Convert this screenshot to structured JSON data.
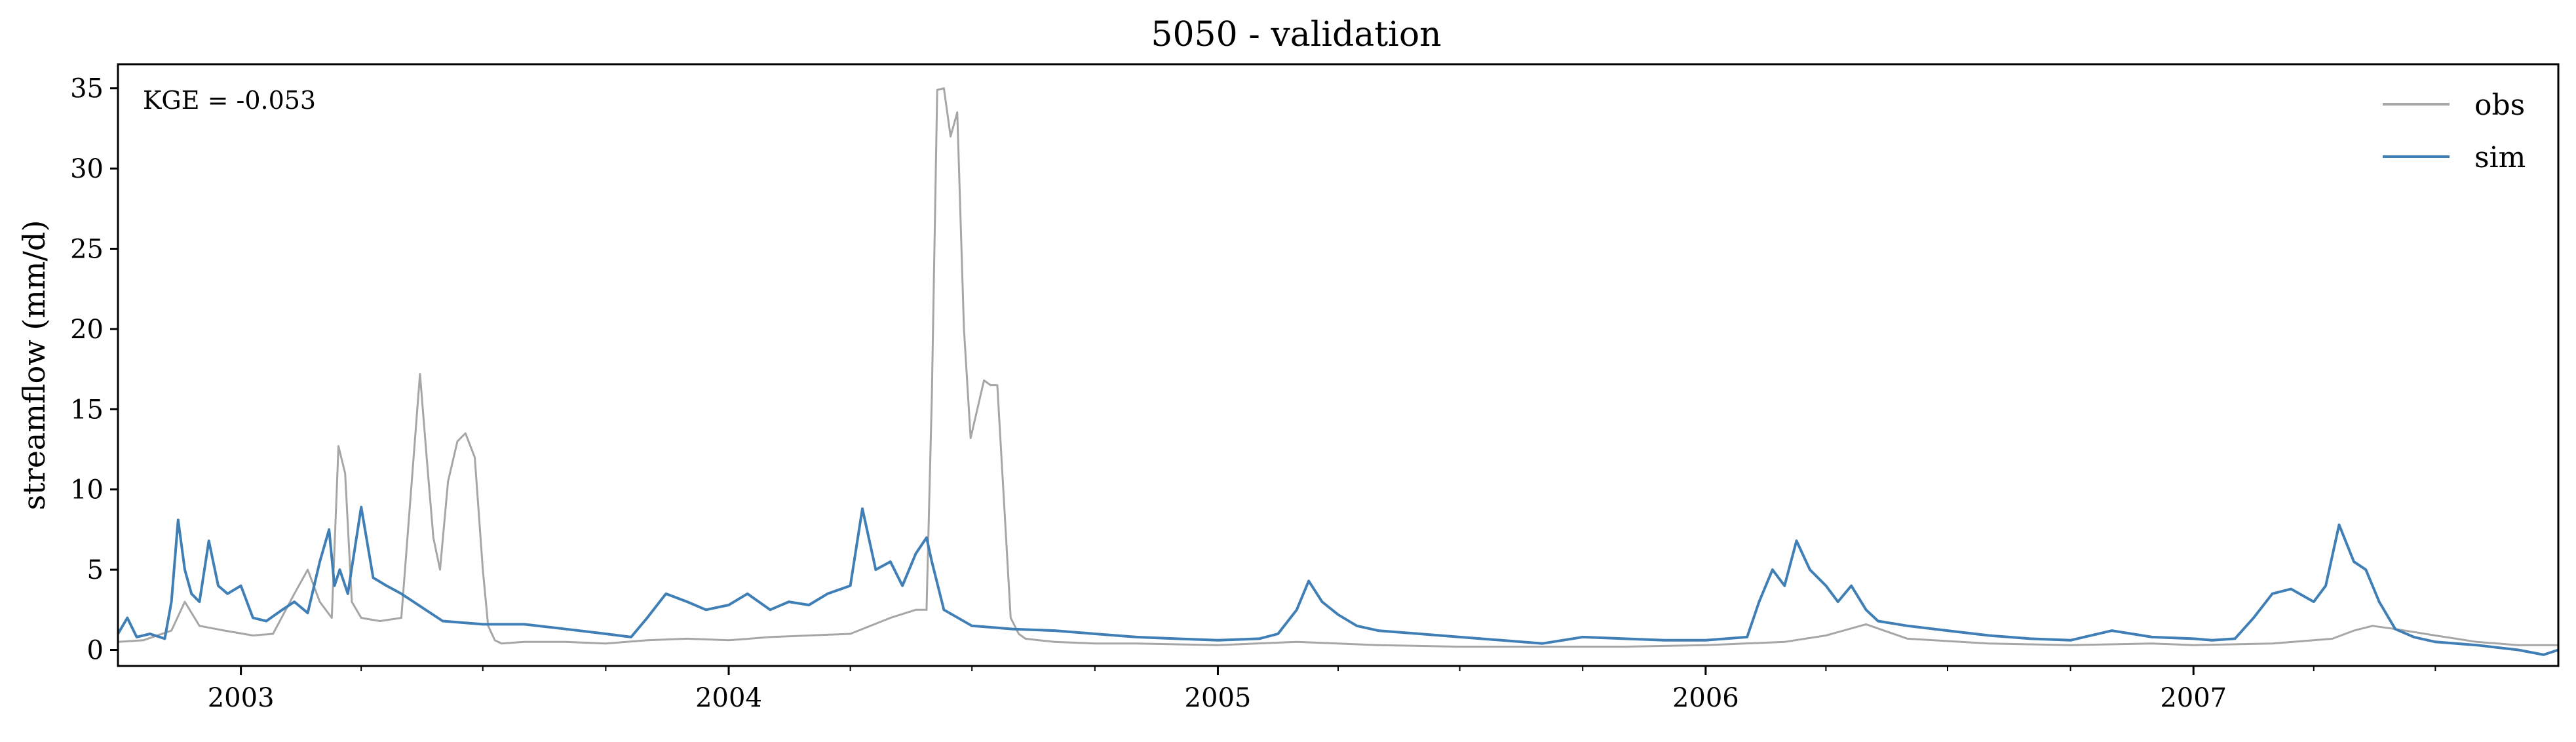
{
  "chart_data": {
    "type": "line",
    "title": "5050 - validation",
    "xlabel": "",
    "ylabel": "streamflow (mm/d)",
    "xlim": [
      "2002-10-01",
      "2007-10-01"
    ],
    "ylim": [
      -1,
      36.5
    ],
    "yticks": [
      0,
      5,
      10,
      15,
      20,
      25,
      30,
      35
    ],
    "xticks": [
      {
        "date": "2003-01-01",
        "label": "2003"
      },
      {
        "date": "2004-01-01",
        "label": "2004"
      },
      {
        "date": "2005-01-01",
        "label": "2005"
      },
      {
        "date": "2006-01-01",
        "label": "2006"
      },
      {
        "date": "2007-01-01",
        "label": "2007"
      }
    ],
    "grid": false,
    "legend_position": "top-right",
    "annotation": "KGE = -0.053",
    "series": [
      {
        "name": "obs",
        "color": "#a6a6a6",
        "x": [
          "2002-10-01",
          "2002-10-20",
          "2002-11-10",
          "2002-11-20",
          "2002-12-01",
          "2002-12-20",
          "2003-01-10",
          "2003-01-25",
          "2003-02-10",
          "2003-02-20",
          "2003-03-01",
          "2003-03-10",
          "2003-03-15",
          "2003-03-20",
          "2003-03-25",
          "2003-04-01",
          "2003-04-15",
          "2003-05-01",
          "2003-05-15",
          "2003-05-20",
          "2003-05-25",
          "2003-05-30",
          "2003-06-05",
          "2003-06-12",
          "2003-06-18",
          "2003-06-25",
          "2003-07-01",
          "2003-07-05",
          "2003-07-10",
          "2003-07-15",
          "2003-08-01",
          "2003-09-01",
          "2003-10-01",
          "2003-11-01",
          "2003-12-01",
          "2004-01-01",
          "2004-02-01",
          "2004-03-01",
          "2004-04-01",
          "2004-05-01",
          "2004-05-20",
          "2004-05-28",
          "2004-06-01",
          "2004-06-05",
          "2004-06-10",
          "2004-06-15",
          "2004-06-20",
          "2004-06-25",
          "2004-06-30",
          "2004-07-05",
          "2004-07-10",
          "2004-07-15",
          "2004-07-20",
          "2004-07-30",
          "2004-08-05",
          "2004-08-10",
          "2004-08-20",
          "2004-09-01",
          "2004-10-01",
          "2004-11-01",
          "2005-01-01",
          "2005-03-01",
          "2005-05-01",
          "2005-07-01",
          "2005-09-01",
          "2005-11-01",
          "2006-01-01",
          "2006-03-01",
          "2006-04-01",
          "2006-05-01",
          "2006-06-01",
          "2006-08-01",
          "2006-10-01",
          "2006-12-01",
          "2007-01-01",
          "2007-03-01",
          "2007-04-15",
          "2007-05-01",
          "2007-05-15",
          "2007-06-01",
          "2007-07-01",
          "2007-08-01",
          "2007-09-01",
          "2007-10-01"
        ],
        "y": [
          0.5,
          0.6,
          1.2,
          3.0,
          1.5,
          1.2,
          0.9,
          1.0,
          3.5,
          5.0,
          3.0,
          2.0,
          12.7,
          11.0,
          3.0,
          2.0,
          1.8,
          2.0,
          17.2,
          12.0,
          7.0,
          5.0,
          10.5,
          13.0,
          13.5,
          12.0,
          5.0,
          1.5,
          0.6,
          0.4,
          0.5,
          0.5,
          0.4,
          0.6,
          0.7,
          0.6,
          0.8,
          0.9,
          1.0,
          2.0,
          2.5,
          2.5,
          15.8,
          34.9,
          35.0,
          32.0,
          33.5,
          20.0,
          13.2,
          15.0,
          16.8,
          16.5,
          16.5,
          2.0,
          1.0,
          0.7,
          0.6,
          0.5,
          0.4,
          0.4,
          0.3,
          0.5,
          0.3,
          0.2,
          0.2,
          0.2,
          0.3,
          0.5,
          0.9,
          1.6,
          0.7,
          0.4,
          0.3,
          0.4,
          0.3,
          0.4,
          0.7,
          1.2,
          1.5,
          1.3,
          0.9,
          0.5,
          0.3,
          0.3
        ]
      },
      {
        "name": "sim",
        "color": "#3f7fb5",
        "x": [
          "2002-10-01",
          "2002-10-08",
          "2002-10-15",
          "2002-10-25",
          "2002-11-05",
          "2002-11-10",
          "2002-11-15",
          "2002-11-20",
          "2002-11-25",
          "2002-12-01",
          "2002-12-08",
          "2002-12-15",
          "2002-12-22",
          "2003-01-01",
          "2003-01-10",
          "2003-01-20",
          "2003-02-01",
          "2003-02-10",
          "2003-02-20",
          "2003-03-01",
          "2003-03-08",
          "2003-03-12",
          "2003-03-16",
          "2003-03-22",
          "2003-04-01",
          "2003-04-10",
          "2003-04-20",
          "2003-05-01",
          "2003-06-01",
          "2003-07-01",
          "2003-08-01",
          "2003-09-01",
          "2003-10-01",
          "2003-10-20",
          "2003-11-01",
          "2003-11-15",
          "2003-12-01",
          "2003-12-15",
          "2004-01-01",
          "2004-01-15",
          "2004-02-01",
          "2004-02-15",
          "2004-03-01",
          "2004-03-15",
          "2004-04-01",
          "2004-04-10",
          "2004-04-20",
          "2004-05-01",
          "2004-05-10",
          "2004-05-20",
          "2004-05-28",
          "2004-06-01",
          "2004-06-10",
          "2004-07-01",
          "2004-08-01",
          "2004-09-01",
          "2004-10-01",
          "2004-11-01",
          "2004-12-01",
          "2005-01-01",
          "2005-02-01",
          "2005-02-15",
          "2005-03-01",
          "2005-03-10",
          "2005-03-20",
          "2005-04-01",
          "2005-04-15",
          "2005-05-01",
          "2005-06-01",
          "2005-07-01",
          "2005-08-01",
          "2005-09-01",
          "2005-10-01",
          "2005-11-01",
          "2005-12-01",
          "2006-01-01",
          "2006-02-01",
          "2006-02-10",
          "2006-02-20",
          "2006-03-01",
          "2006-03-10",
          "2006-03-20",
          "2006-04-01",
          "2006-04-10",
          "2006-04-20",
          "2006-05-01",
          "2006-05-10",
          "2006-06-01",
          "2006-07-01",
          "2006-08-01",
          "2006-09-01",
          "2006-10-01",
          "2006-11-01",
          "2006-12-01",
          "2007-01-01",
          "2007-01-15",
          "2007-02-01",
          "2007-02-15",
          "2007-03-01",
          "2007-03-15",
          "2007-04-01",
          "2007-04-10",
          "2007-04-20",
          "2007-05-01",
          "2007-05-10",
          "2007-05-20",
          "2007-06-01",
          "2007-06-15",
          "2007-07-01",
          "2007-08-01",
          "2007-09-01",
          "2007-09-20",
          "2007-10-01"
        ],
        "y": [
          1.0,
          2.0,
          0.8,
          1.0,
          0.7,
          3.0,
          8.1,
          5.0,
          3.5,
          3.0,
          6.8,
          4.0,
          3.5,
          4.0,
          2.0,
          1.8,
          2.5,
          3.0,
          2.3,
          5.5,
          7.5,
          4.0,
          5.0,
          3.5,
          8.9,
          4.5,
          4.0,
          3.5,
          1.8,
          1.6,
          1.6,
          1.3,
          1.0,
          0.8,
          2.0,
          3.5,
          3.0,
          2.5,
          2.8,
          3.5,
          2.5,
          3.0,
          2.8,
          3.5,
          4.0,
          8.8,
          5.0,
          5.5,
          4.0,
          6.0,
          7.0,
          5.5,
          2.5,
          1.5,
          1.3,
          1.2,
          1.0,
          0.8,
          0.7,
          0.6,
          0.7,
          1.0,
          2.5,
          4.3,
          3.0,
          2.2,
          1.5,
          1.2,
          1.0,
          0.8,
          0.6,
          0.4,
          0.8,
          0.7,
          0.6,
          0.6,
          0.8,
          3.0,
          5.0,
          4.0,
          6.8,
          5.0,
          4.0,
          3.0,
          4.0,
          2.5,
          1.8,
          1.5,
          1.2,
          0.9,
          0.7,
          0.6,
          1.2,
          0.8,
          0.7,
          0.6,
          0.7,
          2.0,
          3.5,
          3.8,
          3.0,
          4.0,
          7.8,
          5.5,
          5.0,
          3.0,
          1.3,
          0.8,
          0.5,
          0.3,
          0.0,
          -0.3,
          0.0
        ]
      }
    ]
  }
}
